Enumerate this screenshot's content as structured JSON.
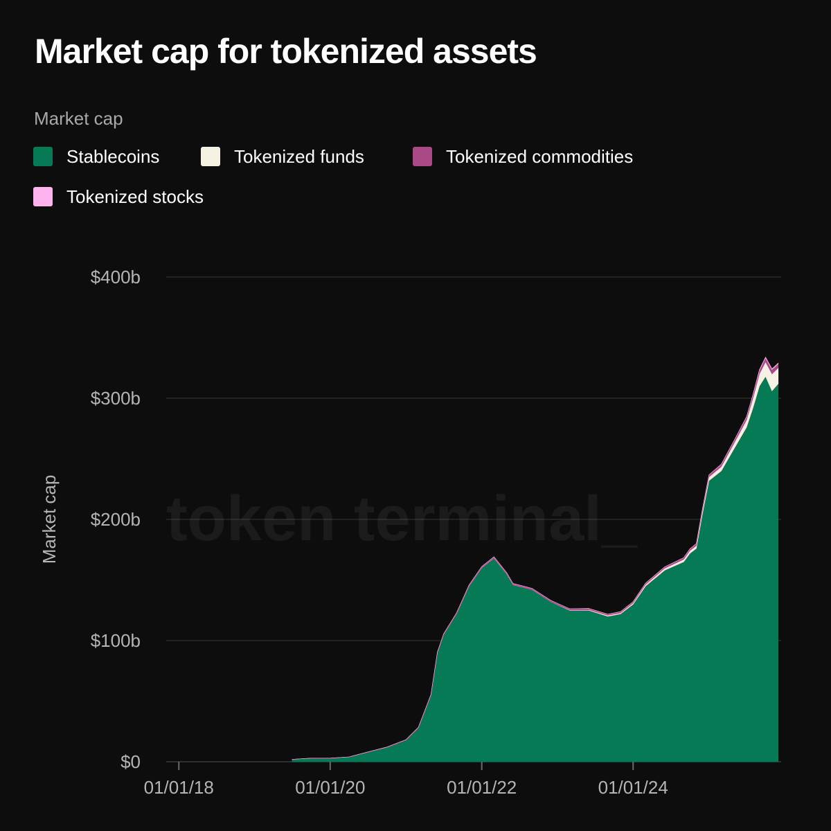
{
  "title": "Market cap for tokenized assets",
  "legend": {
    "title": "Market cap",
    "items": [
      {
        "label": "Stablecoins",
        "color": "#057a55"
      },
      {
        "label": "Tokenized funds",
        "color": "#f5f1e3"
      },
      {
        "label": "Tokenized commodities",
        "color": "#a94a86"
      },
      {
        "label": "Tokenized stocks",
        "color": "#ffb3ee"
      }
    ]
  },
  "watermark": "token terminal_",
  "chart_data": {
    "type": "area",
    "stacked": true,
    "title": "Market cap for tokenized assets",
    "ylabel": "Market cap",
    "ylim": [
      0,
      400
    ],
    "y_unit": "billions USD",
    "y_ticks": [
      0,
      100,
      200,
      300,
      400
    ],
    "y_tick_labels": [
      "$0",
      "$100b",
      "$200b",
      "$300b",
      "$400b"
    ],
    "x_ticks": [
      "2018-01-01",
      "2020-01-01",
      "2022-01-01",
      "2024-01-01"
    ],
    "x_tick_labels": [
      "01/01/18",
      "01/01/20",
      "01/01/22",
      "01/01/24"
    ],
    "xlim": [
      "2017-11-01",
      "2025-12-15"
    ],
    "grid": true,
    "legend_position": "top-left",
    "x": [
      "2019-07-01",
      "2019-10-01",
      "2020-01-01",
      "2020-04-01",
      "2020-07-01",
      "2020-10-01",
      "2021-01-01",
      "2021-03-01",
      "2021-05-01",
      "2021-06-01",
      "2021-07-01",
      "2021-09-01",
      "2021-11-01",
      "2022-01-01",
      "2022-03-01",
      "2022-05-01",
      "2022-06-01",
      "2022-09-01",
      "2022-12-01",
      "2023-03-01",
      "2023-06-01",
      "2023-09-01",
      "2023-11-01",
      "2024-01-01",
      "2024-03-01",
      "2024-06-01",
      "2024-09-01",
      "2024-10-01",
      "2024-11-01",
      "2024-12-01",
      "2025-01-01",
      "2025-03-01",
      "2025-05-01",
      "2025-07-01",
      "2025-08-01",
      "2025-09-01",
      "2025-10-01",
      "2025-11-01",
      "2025-12-01"
    ],
    "series": [
      {
        "name": "Stablecoins",
        "color": "#057a55",
        "values": [
          2,
          3,
          3,
          4,
          8,
          12,
          18,
          28,
          55,
          90,
          105,
          122,
          145,
          160,
          168,
          155,
          146,
          142,
          132,
          125,
          125,
          120,
          122,
          130,
          145,
          158,
          165,
          172,
          176,
          205,
          232,
          240,
          258,
          276,
          292,
          310,
          318,
          306,
          312
        ]
      },
      {
        "name": "Tokenized funds",
        "color": "#f5f1e3",
        "values": [
          0,
          0,
          0,
          0,
          0,
          0,
          0,
          0,
          0,
          0,
          0,
          0,
          0.1,
          0.1,
          0.1,
          0.1,
          0.1,
          0.1,
          0.1,
          0.3,
          0.5,
          0.8,
          0.8,
          1,
          1.2,
          1.6,
          2,
          2.2,
          2.4,
          2.6,
          3,
          3.5,
          4.5,
          6,
          8,
          10,
          12,
          14,
          13
        ]
      },
      {
        "name": "Tokenized commodities",
        "color": "#a94a86",
        "values": [
          0,
          0,
          0,
          0,
          0.1,
          0.2,
          0.3,
          0.4,
          0.5,
          0.6,
          0.6,
          0.8,
          0.9,
          1,
          1.1,
          1,
          1,
          1,
          1,
          1,
          1,
          1,
          1.1,
          1.1,
          1.2,
          1.2,
          1.4,
          1.5,
          1.6,
          1.6,
          1.8,
          2,
          2.2,
          2.5,
          2.8,
          3,
          3.4,
          3.6,
          3.4
        ]
      },
      {
        "name": "Tokenized stocks",
        "color": "#ffb3ee",
        "values": [
          0,
          0,
          0,
          0,
          0,
          0,
          0,
          0,
          0,
          0,
          0,
          0,
          0,
          0,
          0,
          0,
          0,
          0,
          0,
          0,
          0,
          0,
          0,
          0,
          0,
          0,
          0,
          0,
          0,
          0,
          0,
          0,
          0,
          0.2,
          0.3,
          0.4,
          0.5,
          0.6,
          0.6
        ]
      }
    ]
  }
}
